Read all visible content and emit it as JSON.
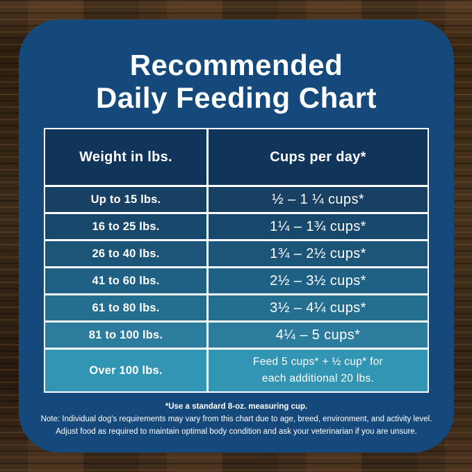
{
  "title": {
    "line1": "Recommended",
    "line2": "Daily Feeding Chart"
  },
  "chart_data": {
    "type": "table",
    "title": "Recommended Daily Feeding Chart",
    "columns": [
      "Weight in lbs.",
      "Cups per day*"
    ],
    "rows": [
      {
        "weight": "Up to 15 lbs.",
        "cups": "½ – 1 ¼ cups*"
      },
      {
        "weight": "16 to 25 lbs.",
        "cups": "1¼ – 1¾  cups*"
      },
      {
        "weight": "26 to 40 lbs.",
        "cups": "1¾ – 2½ cups*"
      },
      {
        "weight": "41 to 60 lbs.",
        "cups": "2½ – 3½ cups*"
      },
      {
        "weight": "61 to 80 lbs.",
        "cups": "3½ – 4¼ cups*"
      },
      {
        "weight": "81 to 100 lbs.",
        "cups": "4¼ – 5 cups*"
      },
      {
        "weight": "Over 100 lbs.",
        "cups": "Feed 5 cups* + ½ cup* for each additional 20 lbs.",
        "cups_line1": "Feed 5 cups*  + ½ cup* for",
        "cups_line2": "each  additional 20 lbs."
      }
    ],
    "footnotes": [
      "*Use a standard 8-oz. measuring cup.",
      "Note: Individual dog's requirements may vary from this chart due to age, breed, environment, and activity level.",
      "Adjust food as required to maintain optimal body condition and ask your veterinarian if you are unsure."
    ]
  },
  "notes": {
    "measuring_cup": "*Use a standard 8-oz. measuring cup.",
    "note_line1": "Note: Individual dog's requirements may vary from this chart due to age, breed, environment, and activity level.",
    "note_line2": "Adjust food as required to maintain optimal body condition and ask your veterinarian if you are unsure."
  },
  "colors": {
    "card_bg": "#15497c",
    "table_border": "#ffffff",
    "header_bg": "#10345a",
    "text": "#ffffff",
    "row_colors": [
      "#174063",
      "#18496c",
      "#1c5578",
      "#1f6184",
      "#246e8f",
      "#2b7c9d",
      "#3295b3"
    ]
  }
}
